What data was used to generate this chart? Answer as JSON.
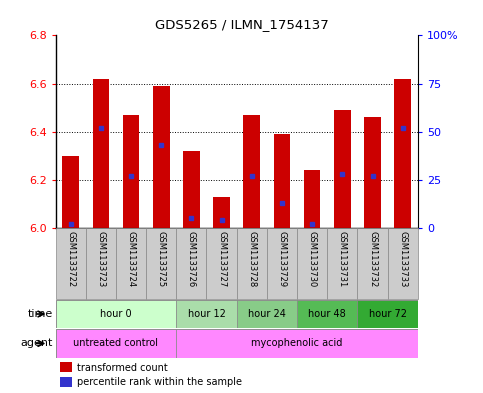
{
  "title": "GDS5265 / ILMN_1754137",
  "samples": [
    "GSM1133722",
    "GSM1133723",
    "GSM1133724",
    "GSM1133725",
    "GSM1133726",
    "GSM1133727",
    "GSM1133728",
    "GSM1133729",
    "GSM1133730",
    "GSM1133731",
    "GSM1133732",
    "GSM1133733"
  ],
  "bar_values": [
    6.3,
    6.62,
    6.47,
    6.59,
    6.32,
    6.13,
    6.47,
    6.39,
    6.24,
    6.49,
    6.46,
    6.62
  ],
  "percentile_values": [
    2,
    52,
    27,
    43,
    5,
    4,
    27,
    13,
    2,
    28,
    27,
    52
  ],
  "ymin": 6.0,
  "ymax": 6.8,
  "yticks": [
    6.0,
    6.2,
    6.4,
    6.6,
    6.8
  ],
  "right_yticks": [
    0,
    25,
    50,
    75,
    100
  ],
  "right_yticklabels": [
    "0",
    "25",
    "50",
    "75",
    "100%"
  ],
  "bar_color": "#cc0000",
  "percentile_color": "#3333cc",
  "bar_width": 0.55,
  "time_groups": [
    {
      "label": "hour 0",
      "start": 0,
      "end": 3,
      "color": "#ccffcc"
    },
    {
      "label": "hour 12",
      "start": 4,
      "end": 5,
      "color": "#aaddaa"
    },
    {
      "label": "hour 24",
      "start": 6,
      "end": 7,
      "color": "#88cc88"
    },
    {
      "label": "hour 48",
      "start": 8,
      "end": 9,
      "color": "#55bb55"
    },
    {
      "label": "hour 72",
      "start": 10,
      "end": 11,
      "color": "#33aa33"
    }
  ],
  "agent_groups": [
    {
      "label": "untreated control",
      "start": 0,
      "end": 3,
      "color": "#ff88ff"
    },
    {
      "label": "mycophenolic acid",
      "start": 4,
      "end": 11,
      "color": "#ff88ff"
    }
  ],
  "legend_red_label": "transformed count",
  "legend_blue_label": "percentile rank within the sample",
  "background_color": "#ffffff",
  "plot_bg_color": "#ffffff",
  "sample_box_color": "#cccccc",
  "spine_color": "#000000"
}
